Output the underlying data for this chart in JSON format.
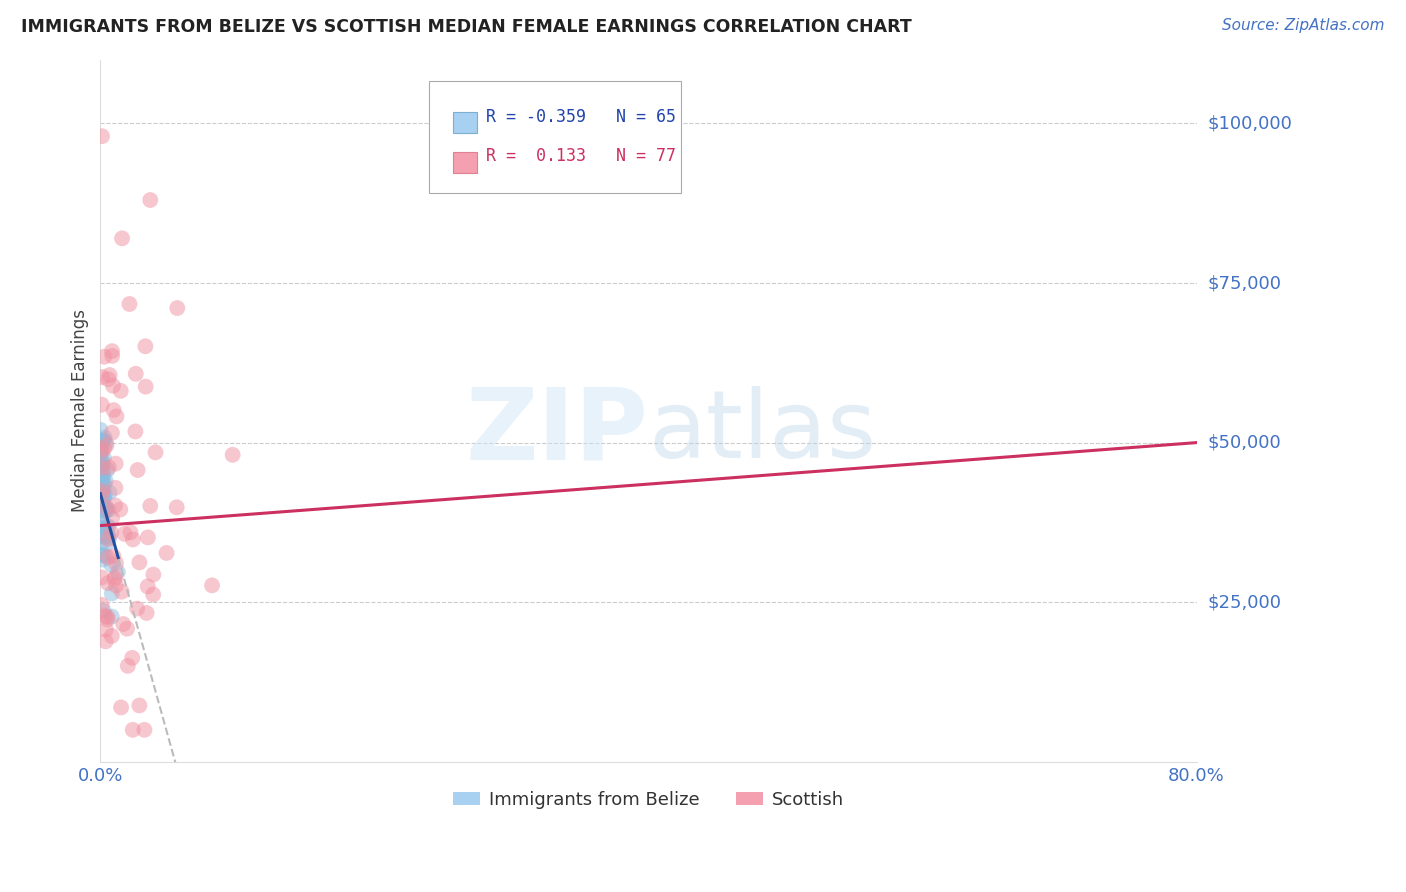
{
  "title": "IMMIGRANTS FROM BELIZE VS SCOTTISH MEDIAN FEMALE EARNINGS CORRELATION CHART",
  "source": "Source: ZipAtlas.com",
  "ylabel": "Median Female Earnings",
  "ytick_labels": [
    "$25,000",
    "$50,000",
    "$75,000",
    "$100,000"
  ],
  "ytick_values": [
    25000,
    50000,
    75000,
    100000
  ],
  "background_color": "#ffffff",
  "grid_color": "#cccccc",
  "blue_color": "#8bbce0",
  "pink_color": "#f090a0",
  "blue_line_color": "#2050a0",
  "pink_line_color": "#cc3060",
  "dash_color": "#bbbbbb",
  "watermark_color": "#ddeeff",
  "axis_label_color": "#4472c4",
  "title_color": "#222222",
  "source_color": "#4472c4",
  "xlim": [
    0.0,
    0.8
  ],
  "ylim": [
    0,
    110000
  ],
  "legend_R_blue": "-0.359",
  "legend_N_blue": "65",
  "legend_R_pink": "0.133",
  "legend_N_pink": "77"
}
